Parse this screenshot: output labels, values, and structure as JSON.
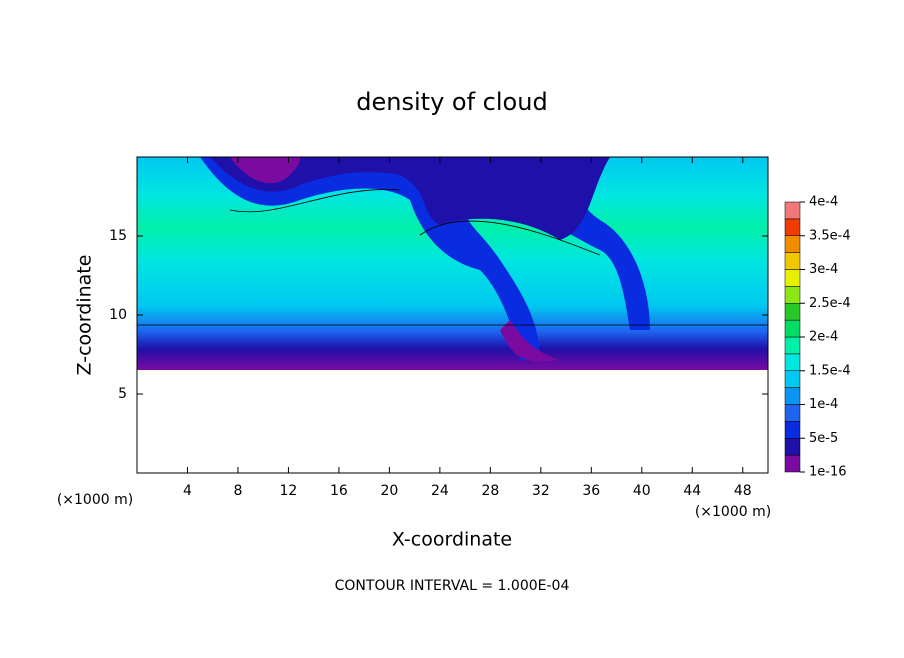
{
  "chart_data": {
    "type": "contour",
    "title": "density of cloud",
    "x_label": "X-coordinate",
    "y_label": "Z-coordinate",
    "x_unit": "(×1000 m)",
    "y_unit": "(×1000 m)",
    "footer": "CONTOUR INTERVAL = 1.000E-04",
    "xlim": [
      0,
      50
    ],
    "ylim": [
      0,
      20
    ],
    "xticks": [
      4,
      8,
      12,
      16,
      20,
      24,
      28,
      32,
      36,
      40,
      44,
      48
    ],
    "yticks": [
      5,
      10,
      15
    ],
    "colorbar": {
      "lim": [
        1e-16,
        0.0004
      ],
      "colors": [
        "#7a0aa0",
        "#1e10a8",
        "#0a2ce0",
        "#1e64f0",
        "#0a96f0",
        "#00c8f0",
        "#00e6e0",
        "#00f0a8",
        "#00dc64",
        "#28c828",
        "#8ce614",
        "#e6f000",
        "#f0c800",
        "#f08c00",
        "#f03c00",
        "#f07878"
      ],
      "ticks": [
        {
          "value": 1e-16,
          "label": "1e-16"
        },
        {
          "value": 5e-05,
          "label": "5e-5"
        },
        {
          "value": 0.0001,
          "label": "1e-4"
        },
        {
          "value": 0.00015,
          "label": "1.5e-4"
        },
        {
          "value": 0.0002,
          "label": "2e-4"
        },
        {
          "value": 0.00025,
          "label": "2.5e-4"
        },
        {
          "value": 0.0003,
          "label": "3e-4"
        },
        {
          "value": 0.00035,
          "label": "3.5e-4"
        },
        {
          "value": 0.0004,
          "label": "4e-4"
        }
      ]
    }
  }
}
